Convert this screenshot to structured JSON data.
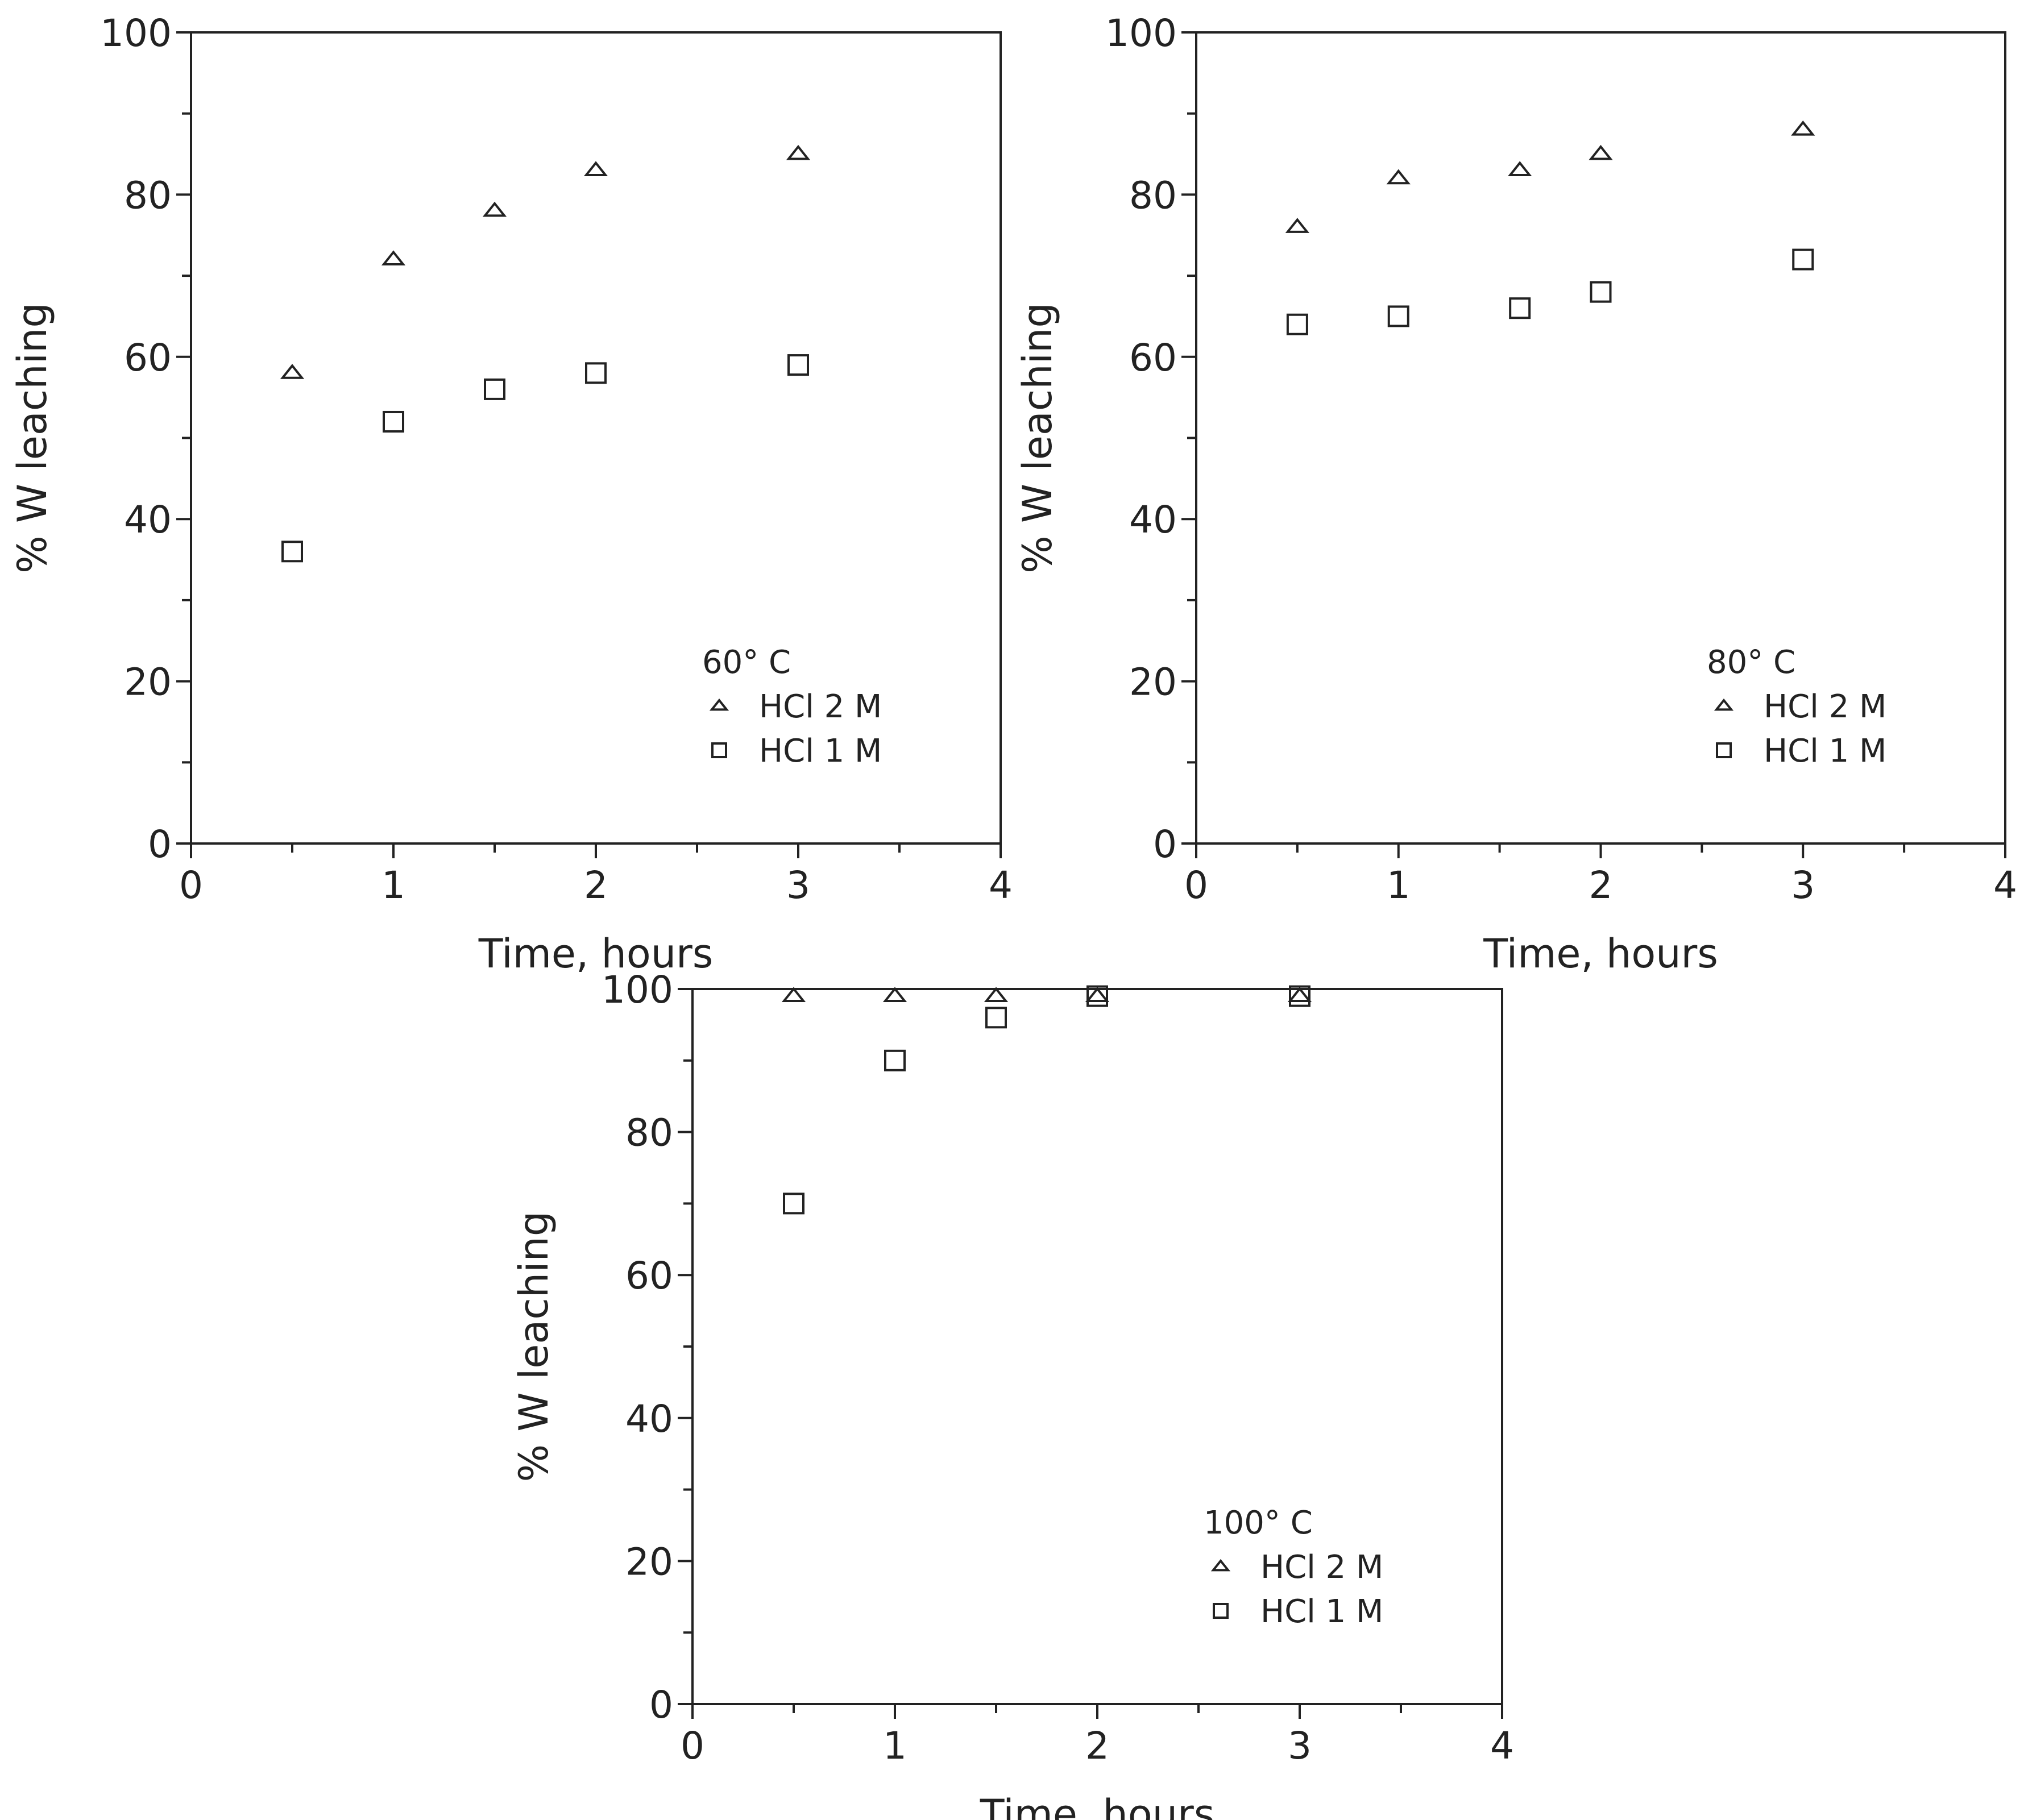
{
  "chart_data": [
    {
      "type": "scatter",
      "xlabel": "Time, hours",
      "ylabel": "% W leaching",
      "xlim": [
        0,
        4
      ],
      "ylim": [
        0,
        100
      ],
      "xticks": [
        "0",
        "1",
        "2",
        "3",
        "4"
      ],
      "yticks": [
        "0",
        "20",
        "40",
        "60",
        "80",
        "100"
      ],
      "grid": false,
      "legend": {
        "title": "60° C",
        "position": "bottom-right",
        "entries": [
          {
            "marker": "triangle",
            "label": "HCl 2 M"
          },
          {
            "marker": "square",
            "label": "HCl 1 M"
          }
        ]
      },
      "series": [
        {
          "name": "HCl 2 M",
          "marker": "triangle",
          "x": [
            0.5,
            1,
            1.5,
            2,
            3
          ],
          "y": [
            58,
            72,
            78,
            83,
            85
          ]
        },
        {
          "name": "HCl 1 M",
          "marker": "square",
          "x": [
            0.5,
            1,
            1.5,
            2,
            3
          ],
          "y": [
            36,
            52,
            56,
            58,
            59
          ]
        }
      ]
    },
    {
      "type": "scatter",
      "xlabel": "Time, hours",
      "ylabel": "% W leaching",
      "xlim": [
        0,
        4
      ],
      "ylim": [
        0,
        100
      ],
      "xticks": [
        "0",
        "1",
        "2",
        "3",
        "4"
      ],
      "yticks": [
        "0",
        "20",
        "40",
        "60",
        "80",
        "100"
      ],
      "grid": false,
      "legend": {
        "title": "80° C",
        "position": "bottom-right",
        "entries": [
          {
            "marker": "triangle",
            "label": "HCl 2 M"
          },
          {
            "marker": "square",
            "label": "HCl 1 M"
          }
        ]
      },
      "series": [
        {
          "name": "HCl 2 M",
          "marker": "triangle",
          "x": [
            0.5,
            1,
            1.6,
            2,
            3
          ],
          "y": [
            76,
            82,
            83,
            85,
            88
          ]
        },
        {
          "name": "HCl 1 M",
          "marker": "square",
          "x": [
            0.5,
            1,
            1.6,
            2,
            3
          ],
          "y": [
            64,
            65,
            66,
            68,
            72
          ]
        }
      ]
    },
    {
      "type": "scatter",
      "xlabel": "Time, hours",
      "ylabel": "% W leaching",
      "xlim": [
        0,
        4
      ],
      "ylim": [
        0,
        100
      ],
      "xticks": [
        "0",
        "1",
        "2",
        "3",
        "4"
      ],
      "yticks": [
        "0",
        "20",
        "40",
        "60",
        "80",
        "100"
      ],
      "grid": false,
      "legend": {
        "title": "100° C",
        "position": "bottom-right",
        "entries": [
          {
            "marker": "triangle",
            "label": "HCl 2 M"
          },
          {
            "marker": "square",
            "label": "HCl 1 M"
          }
        ]
      },
      "series": [
        {
          "name": "HCl 2 M",
          "marker": "triangle",
          "x": [
            0.5,
            1,
            1.5,
            2,
            3
          ],
          "y": [
            99,
            99,
            99,
            99,
            99
          ]
        },
        {
          "name": "HCl 1 M",
          "marker": "square",
          "x": [
            0.5,
            1,
            1.5,
            2,
            3
          ],
          "y": [
            70,
            90,
            96,
            99,
            99
          ]
        }
      ]
    }
  ]
}
